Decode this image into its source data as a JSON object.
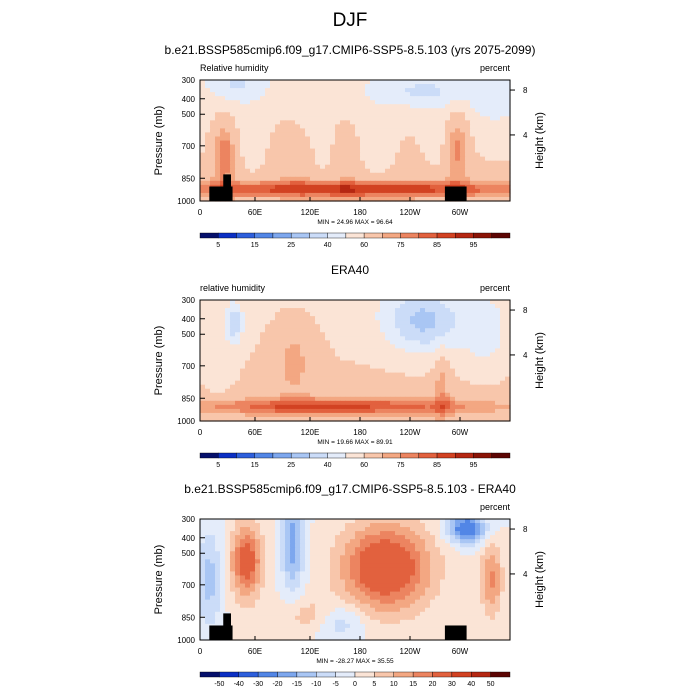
{
  "figure": {
    "title": "DJF"
  },
  "chart_data": [
    {
      "type": "heatmap",
      "panel_title": "b.e21.BSSP585cmip6.f09_g17.CMIP6-SSP5-8.5.103 (yrs 2075-2099)",
      "left_label": "Relative humidity",
      "right_label": "percent",
      "ylabel": "Pressure (mb)",
      "ylabel_right": "Height (km)",
      "x_ticks": [
        "0",
        "60E",
        "120E",
        "180",
        "120W",
        "60W"
      ],
      "y_ticks": [
        "300",
        "400",
        "500",
        "700",
        "850",
        "1000"
      ],
      "height_ticks": [
        "8",
        "4"
      ],
      "stats": "MIN = 24.96  MAX = 96.64",
      "min": 24.96,
      "max": 96.64,
      "colorbar_labels": [
        "5",
        "15",
        "25",
        "40",
        "60",
        "75",
        "85",
        "95"
      ],
      "colorbar_colors": [
        "#05106b",
        "#0b2fc4",
        "#2d5fdc",
        "#5286e6",
        "#7da7ee",
        "#a9c6f4",
        "#cbdcf8",
        "#e4ecfa",
        "#fbe4d6",
        "#f8c6ab",
        "#f3a782",
        "#ec8460",
        "#e2613e",
        "#d24222",
        "#b52712",
        "#8a1306",
        "#5c0503"
      ],
      "has_topography": true
    },
    {
      "type": "heatmap",
      "panel_title": "ERA40",
      "left_label": "relative humidity",
      "right_label": "percent",
      "ylabel": "Pressure (mb)",
      "ylabel_right": "Height (km)",
      "x_ticks": [
        "0",
        "60E",
        "120E",
        "180",
        "120W",
        "60W"
      ],
      "y_ticks": [
        "300",
        "400",
        "500",
        "700",
        "850",
        "1000"
      ],
      "height_ticks": [
        "8",
        "4"
      ],
      "stats": "MIN = 19.66  MAX = 89.91",
      "min": 19.66,
      "max": 89.91,
      "colorbar_labels": [
        "5",
        "15",
        "25",
        "40",
        "60",
        "75",
        "85",
        "95"
      ],
      "colorbar_colors": [
        "#05106b",
        "#0b2fc4",
        "#2d5fdc",
        "#5286e6",
        "#7da7ee",
        "#a9c6f4",
        "#cbdcf8",
        "#e4ecfa",
        "#fbe4d6",
        "#f8c6ab",
        "#f3a782",
        "#ec8460",
        "#e2613e",
        "#d24222",
        "#b52712",
        "#8a1306",
        "#5c0503"
      ],
      "has_topography": false
    },
    {
      "type": "heatmap",
      "panel_title": "b.e21.BSSP585cmip6.f09_g17.CMIP6-SSP5-8.5.103 - ERA40",
      "left_label": "",
      "right_label": "percent",
      "ylabel": "Pressure (mb)",
      "ylabel_right": "Height (km)",
      "x_ticks": [
        "0",
        "60E",
        "120E",
        "180",
        "120W",
        "60W"
      ],
      "y_ticks": [
        "300",
        "400",
        "500",
        "700",
        "850",
        "1000"
      ],
      "height_ticks": [
        "8",
        "4"
      ],
      "stats": "MIN = -28.27  MAX = 35.55",
      "min": -28.27,
      "max": 35.55,
      "colorbar_labels": [
        "-50",
        "-40",
        "-30",
        "-20",
        "-15",
        "-10",
        "-5",
        "0",
        "5",
        "10",
        "15",
        "20",
        "30",
        "40",
        "50"
      ],
      "colorbar_colors": [
        "#05106b",
        "#0b2fc4",
        "#2d5fdc",
        "#5286e6",
        "#7da7ee",
        "#a9c6f4",
        "#cbdcf8",
        "#e4ecfa",
        "#fbe4d6",
        "#f8c6ab",
        "#f3a782",
        "#ec8460",
        "#e2613e",
        "#d24222",
        "#b52712",
        "#5c0503"
      ],
      "has_topography": true
    }
  ]
}
